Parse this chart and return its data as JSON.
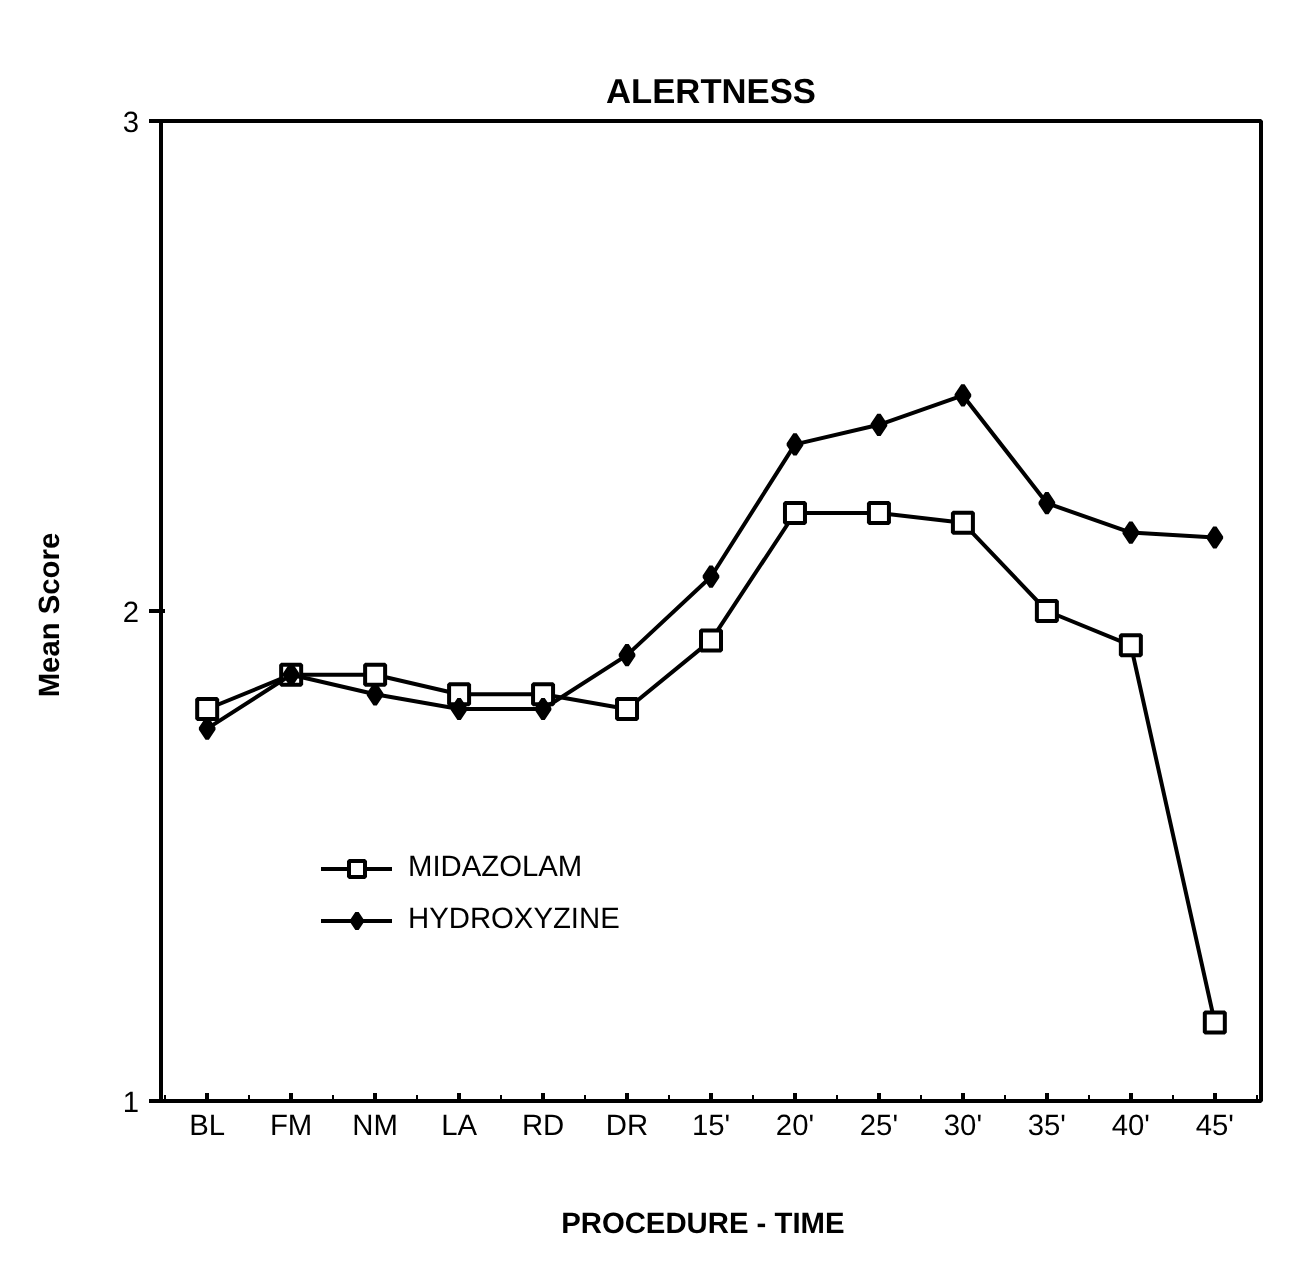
{
  "chart_data": {
    "type": "line",
    "title": "ALERTNESS",
    "xlabel": "PROCEDURE  -  TIME",
    "ylabel": "Mean  Score",
    "categories": [
      "BL",
      "FM",
      "NM",
      "LA",
      "RD",
      "DR",
      "15'",
      "20'",
      "25'",
      "30'",
      "35'",
      "40'",
      "45'"
    ],
    "ylim": [
      1,
      3
    ],
    "yticks": [
      1,
      2,
      3
    ],
    "grid": false,
    "legend": "bottom left",
    "line_style": "solid",
    "series": [
      {
        "name": "MIDAZOLAM",
        "color": "#000000",
        "marker": "square",
        "values": [
          1.8,
          1.87,
          1.87,
          1.83,
          1.83,
          1.8,
          1.94,
          2.2,
          2.2,
          2.18,
          2.0,
          1.93,
          1.16
        ]
      },
      {
        "name": "HYDROXYZINE",
        "color": "#000000",
        "marker": "diamond",
        "values": [
          1.76,
          1.87,
          1.83,
          1.8,
          1.8,
          1.91,
          2.07,
          2.34,
          2.38,
          2.44,
          2.22,
          2.16,
          2.15
        ]
      }
    ]
  }
}
